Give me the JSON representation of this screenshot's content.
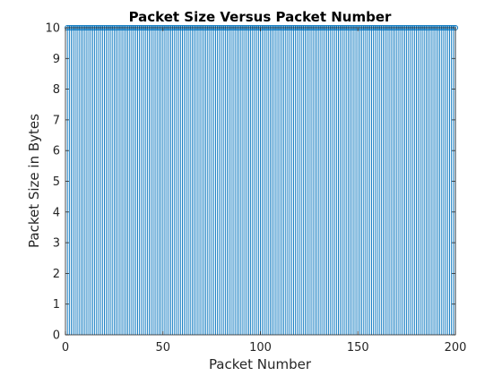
{
  "chart_data": {
    "type": "stem",
    "title": "Packet Size Versus Packet Number",
    "xlabel": "Packet Number",
    "ylabel": "Packet Size in Bytes",
    "xlim": [
      0,
      200
    ],
    "ylim": [
      0,
      10
    ],
    "xticks": [
      0,
      50,
      100,
      150,
      200
    ],
    "yticks": [
      0,
      1,
      2,
      3,
      4,
      5,
      6,
      7,
      8,
      9,
      10
    ],
    "grid": false,
    "marker": "circle",
    "x_range": [
      1,
      200
    ],
    "constant_value": 10,
    "series": [
      {
        "color": "#0072BD"
      }
    ]
  }
}
